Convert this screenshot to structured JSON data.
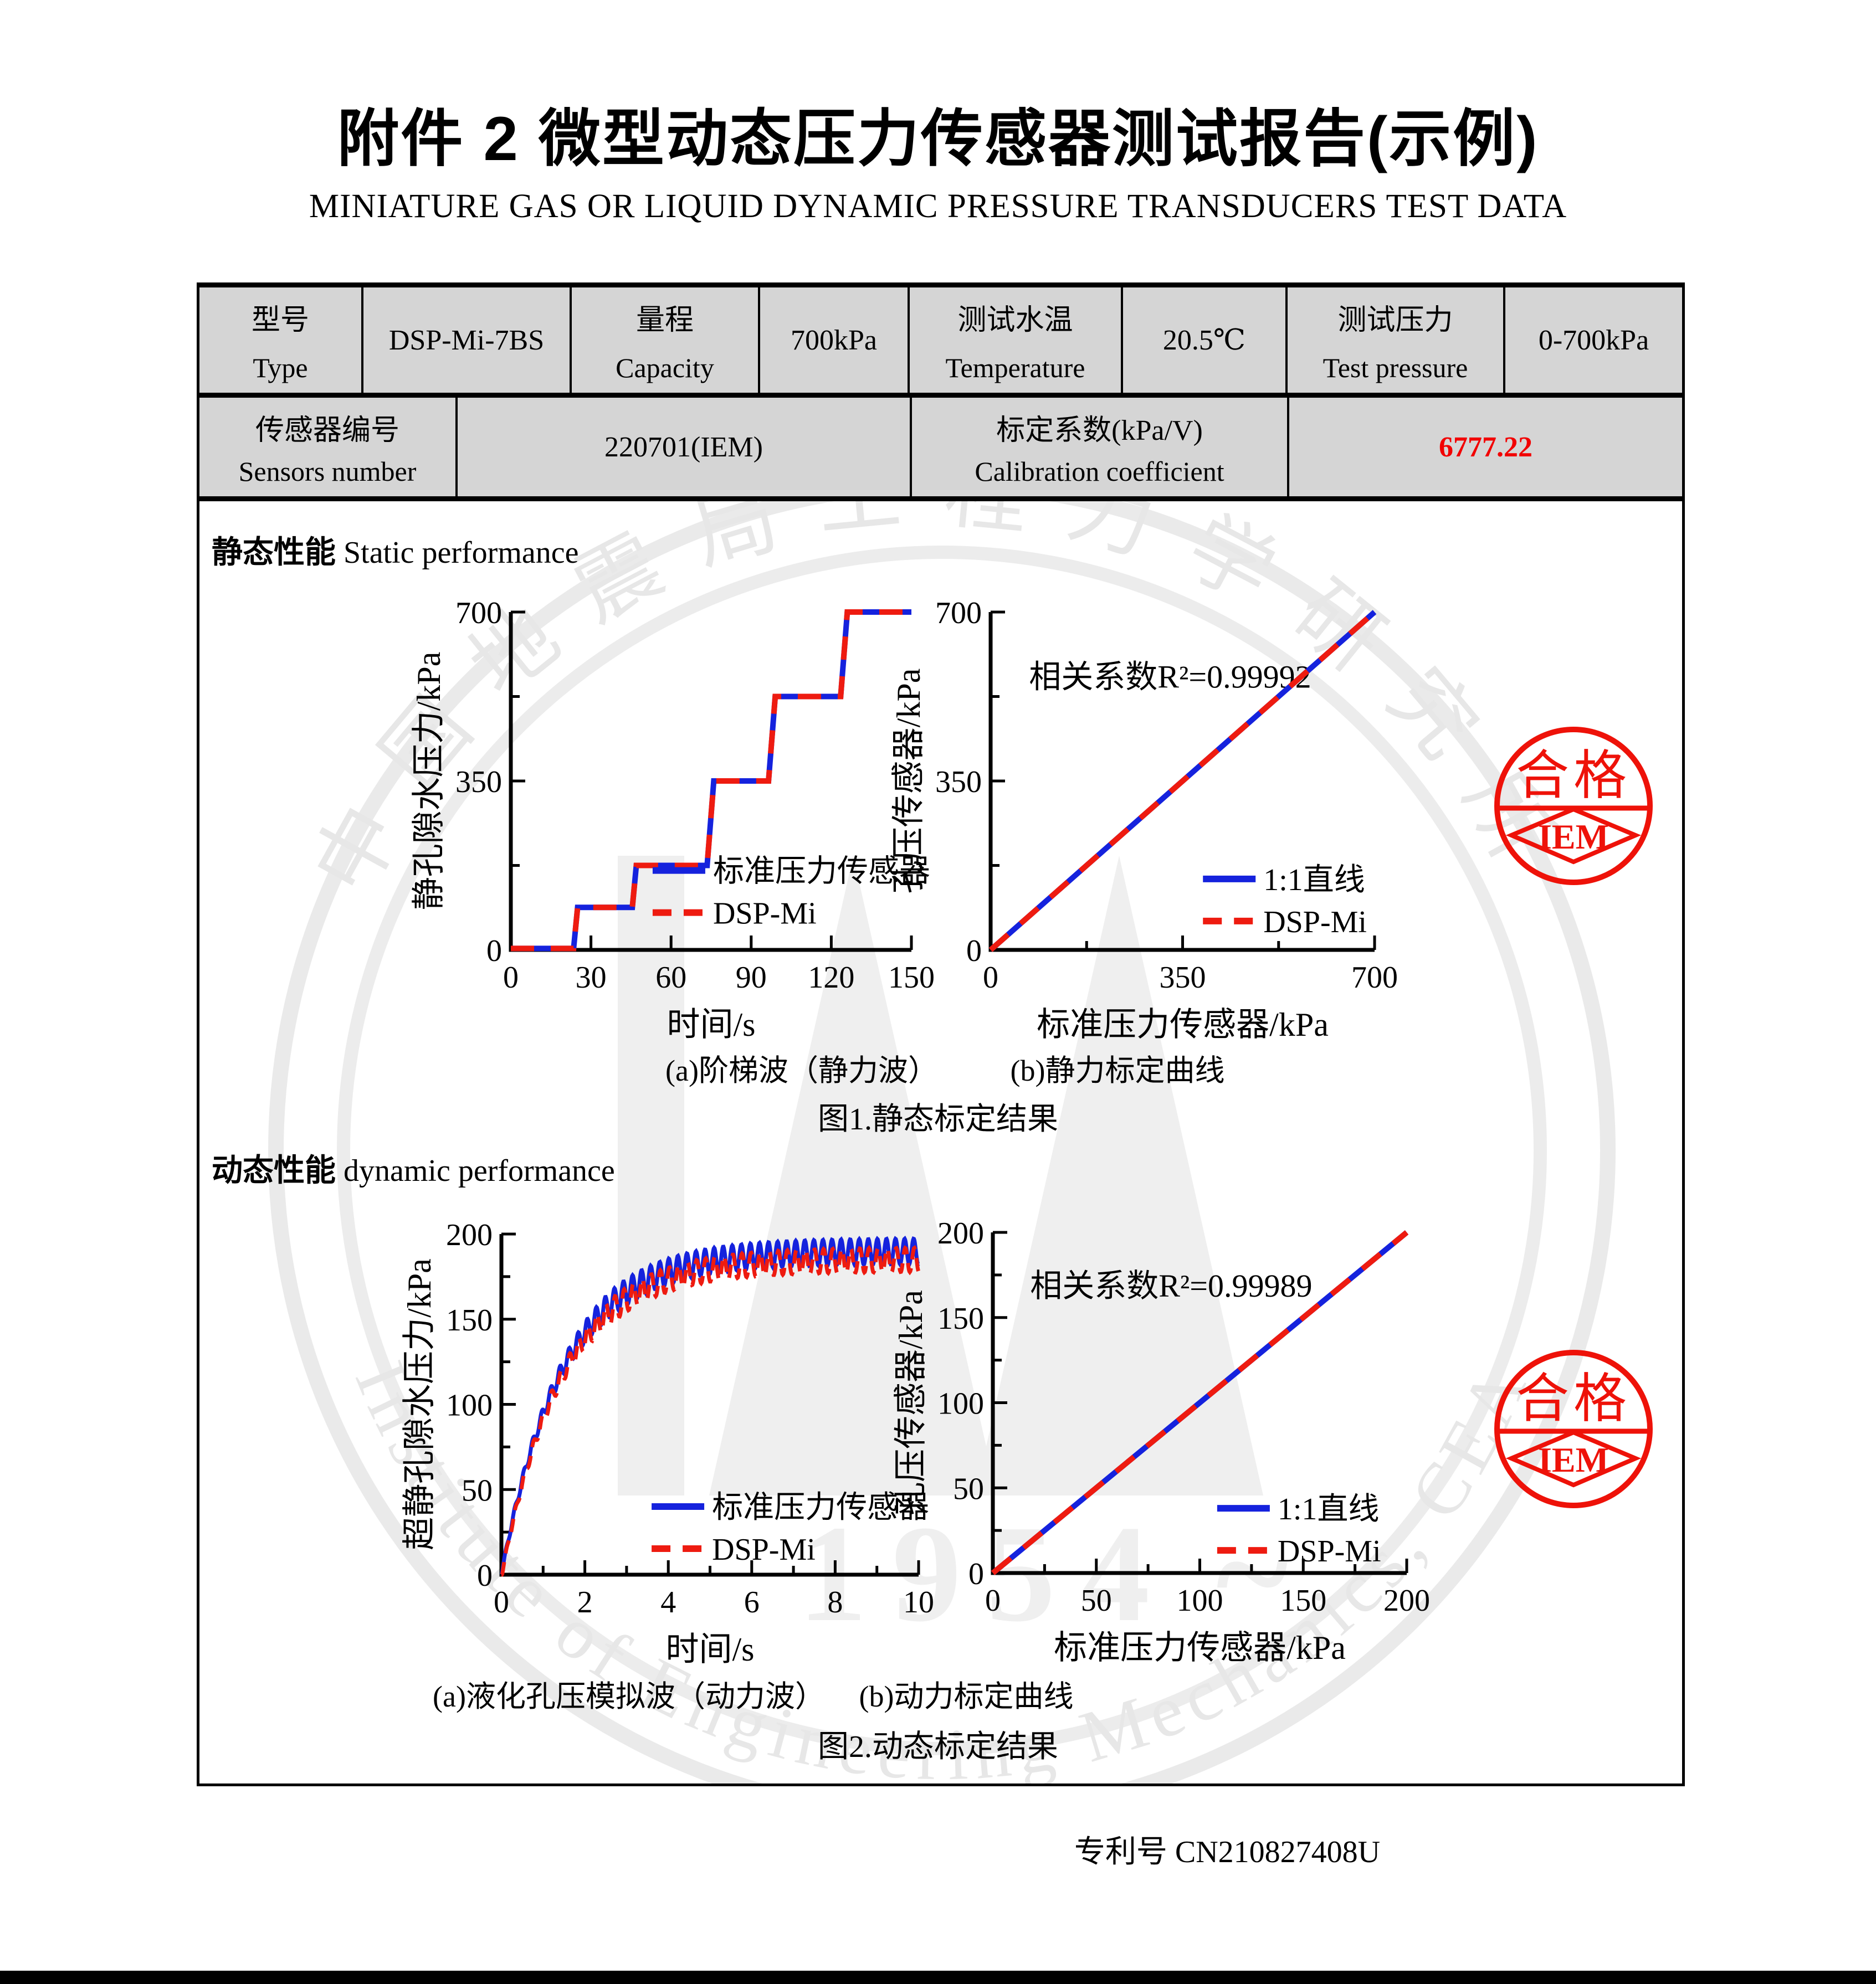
{
  "header": {
    "title_cn": "附件 2  微型动态压力传感器测试报告(示例)",
    "title_en": "MINIATURE GAS OR LIQUID DYNAMIC PRESSURE TRANSDUCERS TEST DATA"
  },
  "spec_table": {
    "row1": [
      {
        "label_cn": "型号",
        "label_en": "Type"
      },
      {
        "value": "DSP-Mi-7BS"
      },
      {
        "label_cn": "量程",
        "label_en": "Capacity"
      },
      {
        "value": "700kPa"
      },
      {
        "label_cn": "测试水温",
        "label_en": "Temperature"
      },
      {
        "value": "20.5℃"
      },
      {
        "label_cn": "测试压力",
        "label_en": "Test pressure"
      },
      {
        "value": "0-700kPa"
      }
    ],
    "row2": [
      {
        "label_cn": "传感器编号",
        "label_en": "Sensors number"
      },
      {
        "value": "220701(IEM)"
      },
      {
        "label_cn": "标定系数(kPa/V)",
        "label_en": "Calibration coefficient"
      },
      {
        "value": "6777.22"
      }
    ],
    "highlight_color": "#f20000"
  },
  "sections": {
    "static_cn": "静态性能",
    "static_en": " Static performance",
    "dynamic_cn": "动态性能",
    "dynamic_en": " dynamic performance"
  },
  "figures": {
    "fig1": {
      "caption_a": "(a)阶梯波（静力波）",
      "caption_b": "(b)静力标定曲线",
      "caption": "图1.静态标定结果"
    },
    "fig2": {
      "caption_a": "(a)液化孔压模拟波（动力波）",
      "caption_b": "(b)动力标定曲线",
      "caption": "图2.动态标定结果"
    }
  },
  "stamp": {
    "text": "合格",
    "org": "IEM",
    "color": "#ee1209"
  },
  "watermark": {
    "ring_cn": "中国地震局工程力学研究所",
    "ring_en": "Institute of Engineering Mechanics, CEA",
    "year": "1954",
    "tilde": "~",
    "color": "#e9e9e9"
  },
  "footer": {
    "patent": "专利号 CN210827408U"
  },
  "colors": {
    "standard_line": "#1522dd",
    "dsp_line": "#ee1b10"
  },
  "chart_data": [
    {
      "id": "static-step",
      "type": "line",
      "title": "(a)阶梯波（静力波）",
      "xlabel": "时间/s",
      "ylabel": "静孔隙水压力/kPa",
      "xlim": [
        0,
        150
      ],
      "ylim": [
        0,
        700
      ],
      "x_ticks": [
        0,
        30,
        60,
        90,
        120,
        150
      ],
      "x_minor": [],
      "y_ticks": [
        0,
        350,
        700
      ],
      "y_minor": [
        175,
        525
      ],
      "grid": false,
      "legend_pos": [
        0.354,
        0.765
      ],
      "series": [
        {
          "name": "标准压力传感器",
          "color": "#1522dd",
          "style": "solid",
          "points": [
            [
              0,
              3
            ],
            [
              23.5,
              3
            ],
            [
              25,
              88
            ],
            [
              45.5,
              88
            ],
            [
              47,
              175
            ],
            [
              73.5,
              175
            ],
            [
              76,
              350
            ],
            [
              96.5,
              350
            ],
            [
              99,
              525
            ],
            [
              123.5,
              525
            ],
            [
              126,
              700
            ],
            [
              150,
              700
            ]
          ]
        },
        {
          "name": "DSP-Mi",
          "color": "#ee1b10",
          "style": "dashed",
          "points": [
            [
              0,
              3
            ],
            [
              23.5,
              3
            ],
            [
              25,
              88
            ],
            [
              45.5,
              88
            ],
            [
              47,
              175
            ],
            [
              73.5,
              175
            ],
            [
              76,
              350
            ],
            [
              96.5,
              350
            ],
            [
              99,
              525
            ],
            [
              123.5,
              525
            ],
            [
              126,
              700
            ],
            [
              150,
              700
            ]
          ]
        }
      ]
    },
    {
      "id": "static-calibration",
      "type": "line",
      "title": "(b)静力标定曲线",
      "xlabel": "标准压力传感器/kPa",
      "ylabel": "孔压传感器/kPa",
      "xlim": [
        0,
        700
      ],
      "ylim": [
        0,
        700
      ],
      "x_ticks": [
        0,
        350,
        700
      ],
      "x_minor": [
        175,
        525
      ],
      "y_ticks": [
        0,
        350,
        700
      ],
      "y_minor": [
        175,
        525
      ],
      "grid": false,
      "annotation": {
        "text": "相关系数R²=0.99992",
        "pos": [
          0.1,
          0.155
        ]
      },
      "legend_pos": [
        0.553,
        0.79
      ],
      "series": [
        {
          "name": "1:1直线",
          "color": "#1522dd",
          "style": "solid",
          "points": [
            [
              0,
              0
            ],
            [
              700,
              700
            ]
          ]
        },
        {
          "name": "DSP-Mi",
          "color": "#ee1b10",
          "style": "dashed",
          "points": [
            [
              0,
              0
            ],
            [
              700,
              700
            ]
          ]
        }
      ]
    },
    {
      "id": "dynamic-wave",
      "type": "line",
      "title": "(a)液化孔压模拟波（动力波）",
      "xlabel": "时间/s",
      "ylabel": "超静孔隙水压力/kPa",
      "xlim": [
        0,
        10
      ],
      "ylim": [
        0,
        200
      ],
      "x_ticks": [
        0,
        2,
        4,
        6,
        8,
        10
      ],
      "x_minor": [
        1,
        3,
        5,
        7,
        9
      ],
      "y_ticks": [
        0,
        50,
        100,
        150,
        200
      ],
      "y_minor": [
        25,
        75,
        125,
        175
      ],
      "grid": false,
      "legend_pos": [
        0.36,
        0.8
      ],
      "series": [
        {
          "name": "标准压力传感器",
          "color": "#1522dd",
          "style": "solid",
          "generator": {
            "t_max": 10,
            "n": 900,
            "asymptote": 190,
            "tau": 1.45,
            "freq": 4.6,
            "amp0": 1.2,
            "amp_k": 2.4,
            "amp_max": 7.5,
            "phase": -1.3
          }
        },
        {
          "name": "DSP-Mi",
          "color": "#ee1b10",
          "style": "dashed",
          "generator": {
            "t_max": 10,
            "n": 900,
            "asymptote": 190,
            "tau": 1.45,
            "freq": 4.6,
            "amp0": 1.2,
            "amp_k": 2.4,
            "amp_max": 7.2,
            "phase": -1.75,
            "scale": 0.98,
            "offset": -1.2
          }
        }
      ]
    },
    {
      "id": "dynamic-calibration",
      "type": "line",
      "title": "(b)动力标定曲线",
      "xlabel": "标准压力传感器/kPa",
      "ylabel": "孔压传感器/kPa",
      "xlim": [
        0,
        200
      ],
      "ylim": [
        0,
        200
      ],
      "x_ticks": [
        0,
        50,
        100,
        150,
        200
      ],
      "x_minor": [
        25,
        75,
        125,
        175
      ],
      "y_ticks": [
        0,
        50,
        100,
        150,
        200
      ],
      "y_minor": [
        25,
        75,
        125,
        175
      ],
      "grid": false,
      "annotation": {
        "text": "相关系数R²=0.99989",
        "pos": [
          0.09,
          0.12
        ]
      },
      "legend_pos": [
        0.542,
        0.81
      ],
      "series": [
        {
          "name": "1:1直线",
          "color": "#1522dd",
          "style": "solid",
          "points": [
            [
              0,
              0
            ],
            [
              200,
              200
            ]
          ]
        },
        {
          "name": "DSP-Mi",
          "color": "#ee1b10",
          "style": "dashed",
          "points": [
            [
              0,
              0
            ],
            [
              200,
              200
            ]
          ]
        }
      ]
    }
  ]
}
